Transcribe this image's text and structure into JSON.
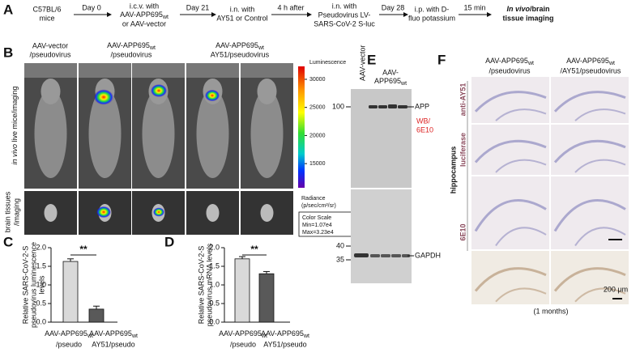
{
  "panel_labels": [
    "A",
    "B",
    "C",
    "D",
    "E",
    "F"
  ],
  "timeline": {
    "nodes": [
      [
        "C57BL/6",
        "mice"
      ],
      [
        "i.c.v. with",
        {
          "text": "AAV-APP695",
          "sub": "wt"
        },
        "or AAV-vector"
      ],
      [
        "i.n. with",
        "AY51 or Control"
      ],
      [
        "i.n. with",
        "Pseudovirus LV-",
        "SARS-CoV-2 S-luc"
      ],
      [
        "i.p. with D-",
        "fluo potassium"
      ],
      [
        {
          "italic": "In vivo",
          "text": "/brain"
        },
        "tissue imaging"
      ]
    ],
    "arrows": [
      "Day 0",
      "Day 21",
      "4 h after",
      "Day 28",
      "15 min"
    ]
  },
  "imaging": {
    "headers": [
      [
        "AAV-vector",
        "/pseudovirus"
      ],
      [
        {
          "text": "AAV-APP695",
          "sub": "wt"
        },
        "/pseudovirus"
      ],
      [
        {
          "text": "AAV-APP695",
          "sub": "wt"
        },
        "AY51/pseudovirus"
      ]
    ],
    "row_labels": [
      {
        "italic": "in vivo",
        "text": " live mice/imaging"
      },
      [
        "brain tissues",
        "/imaging"
      ]
    ],
    "colorbar": {
      "title": "Luminescence",
      "lim": [
        10700,
        32300
      ],
      "ticks": [
        30000,
        25000,
        20000,
        15000
      ],
      "unit": [
        "Radiance",
        "(p/sec/cm²/sr)"
      ],
      "box": [
        "Color Scale",
        "Min=1.07e4",
        "Max=3.23e4"
      ]
    }
  },
  "chart_data": [
    {
      "type": "bar",
      "y_label": [
        "Relative SARS-CoV-2-S",
        "pseudovirus luminescence",
        "levels"
      ],
      "categories": [
        {
          "text": "AAV-APP695",
          "sub": "wt",
          "line2": "/pseudo"
        },
        {
          "text": "AAV-APP695",
          "sub": "wt",
          "line2": "AY51/pseudo"
        }
      ],
      "values": [
        1.63,
        0.35
      ],
      "errors": [
        0.07,
        0.08
      ],
      "colors": [
        "#d9d9d9",
        "#595959"
      ],
      "ylim": [
        0,
        2
      ],
      "yticks": [
        {
          "value": 0,
          "label": "0.0"
        },
        0.5,
        {
          "value": 1,
          "label": "1.0"
        },
        1.5,
        {
          "value": 2,
          "label": "2.0"
        }
      ],
      "annotation": "**"
    },
    {
      "type": "bar",
      "y_label": [
        "Relative SARS-CoV-2-S",
        "pseudovirus mRNA levels"
      ],
      "categories": [
        {
          "text": "AAV-APP695",
          "sub": "wt",
          "line2": "/pseudo"
        },
        {
          "text": "AAV-APP695",
          "sub": "wt",
          "line2": "AY51/pseudo"
        }
      ],
      "values": [
        1.7,
        1.3
      ],
      "errors": [
        0.06,
        0.06
      ],
      "colors": [
        "#d9d9d9",
        "#595959"
      ],
      "ylim": [
        0,
        2
      ],
      "yticks": [
        {
          "value": 0,
          "label": "0.0"
        },
        0.5,
        {
          "value": 1,
          "label": "1.0"
        },
        1.5,
        {
          "value": 2,
          "label": "2.0"
        }
      ],
      "annotation": "**"
    }
  ],
  "blot": {
    "lanes": [
      "AAV-vector",
      {
        "text": "AAV-",
        "line2": "APP695",
        "sub": "wt"
      }
    ],
    "markers": [
      "100",
      "40",
      "35"
    ],
    "labels": [
      "APP",
      "WB/",
      "6E10",
      "GAPDH"
    ]
  },
  "histology": {
    "headers": [
      [
        {
          "text": "AAV-APP695",
          "sub": "wt"
        },
        "/pseudovirus"
      ],
      [
        {
          "text": "AAV-APP695",
          "sub": "wt"
        },
        "/AY51/pseudovirus"
      ]
    ],
    "row_labels": [
      "anti-AY51",
      "luciferase",
      "6E10"
    ],
    "region": "hippocampus",
    "scale": "200 μm",
    "footer": "(1 months)"
  }
}
